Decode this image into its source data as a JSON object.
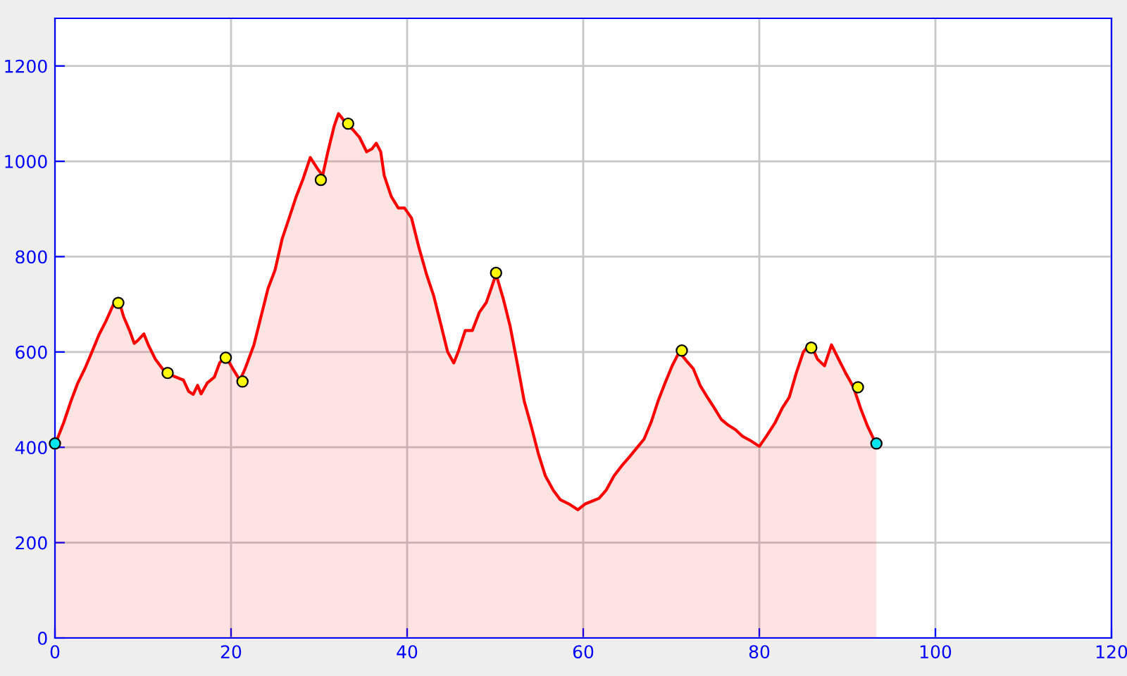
{
  "chart_data": {
    "type": "area",
    "xlim": [
      0,
      120
    ],
    "ylim": [
      0,
      1300
    ],
    "xticks": [
      0,
      20,
      40,
      60,
      80,
      100,
      120
    ],
    "yticks": [
      0,
      200,
      400,
      600,
      800,
      1000,
      1200
    ],
    "grid": true,
    "legend": false,
    "series": [
      {
        "color": "#ff0000",
        "x": [
          0,
          1,
          1.8,
          2.6,
          3.4,
          4.2,
          5,
          5.8,
          6.6,
          7.2,
          7.8,
          8.5,
          9,
          9.4,
          10.1,
          10.6,
          11.4,
          12.2,
          13,
          13.8,
          14.6,
          15.2,
          15.7,
          16.2,
          16.6,
          17.3,
          18.1,
          18.7,
          19.4,
          20.2,
          21,
          21.6,
          22.6,
          23.4,
          24.2,
          25,
          25.8,
          26.6,
          27.4,
          28.2,
          29,
          29.8,
          30.4,
          31,
          31.7,
          32.2,
          33,
          33.8,
          34.6,
          35.4,
          36,
          36.5,
          37,
          37.4,
          38.2,
          39,
          39.7,
          40.5,
          41.3,
          42.2,
          43,
          43.8,
          44.6,
          45.3,
          45.8,
          46.6,
          47.4,
          48.2,
          49,
          50.1,
          50.9,
          51.7,
          52.5,
          53.3,
          54.1,
          54.9,
          55.7,
          56.6,
          57.4,
          58.4,
          59.4,
          60.2,
          61,
          61.8,
          62.6,
          63.5,
          64.5,
          65.3,
          66.1,
          66.9,
          67.7,
          68.5,
          69.3,
          70.1,
          70.9,
          71.7,
          72.5,
          73.3,
          74.1,
          74.9,
          75.7,
          76.5,
          77.3,
          78.1,
          79,
          80,
          80.8,
          81.8,
          82.6,
          83.4,
          84.2,
          85,
          85.8,
          86.6,
          87.4,
          88.2,
          89,
          89.8,
          90.7,
          91.5,
          92.3,
          93.3
        ],
        "values": [
          405,
          452,
          496,
          535,
          565,
          600,
          636,
          665,
          698,
          712,
          674,
          644,
          618,
          624,
          638,
          615,
          585,
          565,
          553,
          547,
          541,
          517,
          511,
          530,
          512,
          535,
          547,
          577,
          591,
          565,
          541,
          565,
          615,
          674,
          733,
          772,
          837,
          881,
          926,
          964,
          1008,
          985,
          970,
          1020,
          1073,
          1100,
          1082,
          1067,
          1050,
          1020,
          1026,
          1038,
          1020,
          970,
          926,
          902,
          902,
          881,
          822,
          763,
          719,
          660,
          600,
          577,
          600,
          645,
          645,
          683,
          704,
          763,
          713,
          654,
          577,
          497,
          444,
          387,
          340,
          310,
          290,
          281,
          269,
          281,
          287,
          293,
          310,
          340,
          364,
          381,
          399,
          417,
          452,
          497,
          535,
          571,
          600,
          582,
          565,
          529,
          505,
          482,
          458,
          446,
          437,
          423,
          414,
          402,
          423,
          452,
          482,
          505,
          556,
          600,
          618,
          585,
          571,
          615,
          585,
          556,
          526,
          482,
          444,
          405
        ]
      },
      {
        "type": "scatter",
        "color": "#ffff00",
        "marker": "circle",
        "x": [
          7.2,
          12.8,
          19.4,
          21.3,
          30.2,
          33.3,
          50.1,
          71.2,
          85.9,
          91.2
        ],
        "values": [
          703,
          556,
          588,
          538,
          961,
          1079,
          766,
          603,
          609,
          526
        ]
      },
      {
        "type": "scatter",
        "color": "#00e5ee",
        "marker": "circle",
        "x": [
          0,
          93.3
        ],
        "values": [
          408,
          408
        ]
      }
    ]
  }
}
